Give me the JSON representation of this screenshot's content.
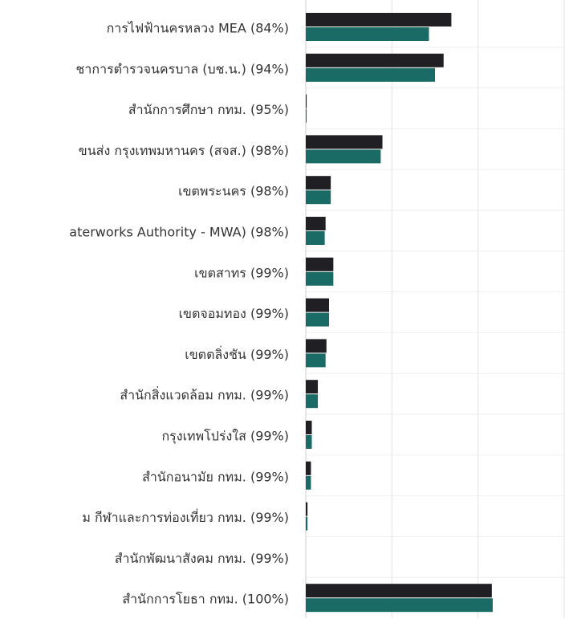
{
  "chart_data": {
    "type": "hbar",
    "categories": [
      "การไฟฟ้านครหลวง MEA (84%)",
      "ชาการตำรวจนครบาล (บช.น.) (94%)",
      "สำนักการศึกษา กทม. (95%)",
      "ขนส่ง กรุงเทพมหานคร (สจส.) (98%)",
      "เขตพระนคร (98%)",
      "aterworks Authority - MWA) (98%)",
      "เขตสาทร (99%)",
      "เขตจอมทอง (99%)",
      "เขตตลิ่งชัน (99%)",
      "สำนักสิ่งแวดล้อม กทม. (99%)",
      "กรุงเทพโปร่งใส (99%)",
      "สำนักอนามัย กทม. (99%)",
      "ม กีฬาและการท่องเที่ยว กทม. (99%)",
      "สำนักพัฒนาสังคม กทม. (99%)",
      "สำนักการโยธา กทม. (100%)"
    ],
    "series": [
      {
        "color": "#1f1f24",
        "values": [
          169,
          160,
          1,
          89,
          29,
          23,
          32,
          27,
          24,
          14,
          7,
          6,
          2,
          0,
          216
        ]
      },
      {
        "color": "#1a6b66",
        "values": [
          143,
          150,
          1,
          87,
          29,
          22,
          32,
          27,
          23,
          14,
          7,
          6,
          2,
          0,
          217
        ]
      }
    ],
    "xlim": [
      0,
      300
    ],
    "xticks": [
      0,
      100,
      200,
      300
    ],
    "grid": true
  }
}
